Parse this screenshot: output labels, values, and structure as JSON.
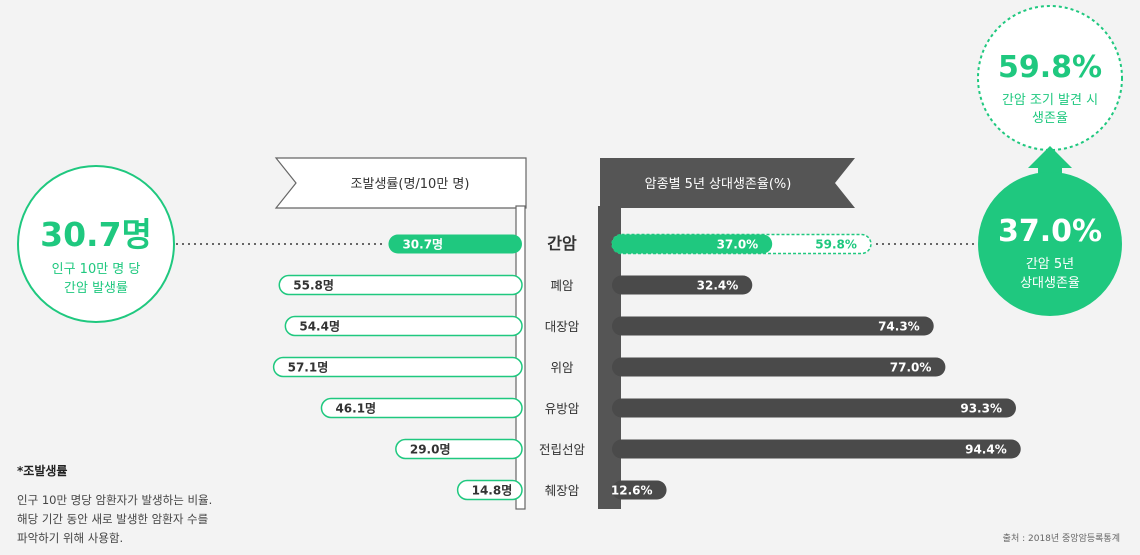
{
  "left_header": "조발생률(명/10만 명)",
  "right_header": "암종별 5년 상대생존율(%)",
  "left_callout": {
    "value": "30.7명",
    "line1": "인구 10만 명 당",
    "line2": "간암 발생률"
  },
  "right_callout_top": {
    "value": "59.8%",
    "line1": "간암 조기 발견 시",
    "line2": "생존율"
  },
  "right_callout_bottom": {
    "value": "37.0%",
    "line1": "간암 5년",
    "line2": "상대생존율"
  },
  "footnote": {
    "title": "*조발생률",
    "lines": [
      "인구 10만 명당 암환자가 발생하는 비율.",
      "해당 기간 동안 새로 발생한 암환자 수를",
      "파악하기 위해 사용함."
    ]
  },
  "source": "출처 : 2018년 중앙암등록통계",
  "colors": {
    "green": "#1fc87f",
    "dark": "#4a4a4a",
    "frame": "#5a5a5a"
  },
  "chart_data": {
    "type": "bar",
    "categories": [
      "간암",
      "폐암",
      "대장암",
      "위암",
      "유방암",
      "전립선암",
      "췌장암"
    ],
    "series": [
      {
        "name": "조발생률(명/10만 명)",
        "values": [
          30.7,
          55.8,
          54.4,
          57.1,
          46.1,
          29.0,
          14.8
        ],
        "labels": [
          "30.7명",
          "55.8명",
          "54.4명",
          "57.1명",
          "46.1명",
          "29.0명",
          "14.8명"
        ]
      },
      {
        "name": "암종별 5년 상대생존율(%)",
        "values": [
          37.0,
          32.4,
          74.3,
          77.0,
          93.3,
          94.4,
          12.6
        ],
        "labels": [
          "37.0%",
          "32.4%",
          "74.3%",
          "77.0%",
          "93.3%",
          "94.4%",
          "12.6%"
        ]
      }
    ],
    "annotations": [
      {
        "category": "간암",
        "value": 59.8,
        "label": "59.8%"
      }
    ],
    "highlight_category": "간암"
  }
}
